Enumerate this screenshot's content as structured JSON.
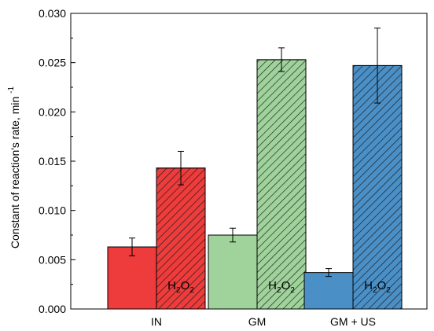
{
  "chart_data": {
    "type": "bar",
    "categories": [
      "IN",
      "GM",
      "GM + US"
    ],
    "ylabel": "Constant of reaction's rate, min",
    "ylabel_superscript": "-1",
    "ylim": [
      0,
      0.03
    ],
    "yticks": [
      "0.000",
      "0.005",
      "0.010",
      "0.015",
      "0.020",
      "0.025",
      "0.030"
    ],
    "series": [
      {
        "values": [
          0.0063,
          0.0075,
          0.0037
        ],
        "errors": [
          0.0009,
          0.0007,
          0.0004
        ],
        "hatched": false
      },
      {
        "values": [
          0.0143,
          0.0253,
          0.0247
        ],
        "errors": [
          0.0017,
          0.0012,
          0.0038
        ],
        "hatched": true,
        "bar_label": "H",
        "bar_label_sub": "2",
        "bar_label_mid": "O",
        "bar_label_sub2": "2"
      }
    ],
    "colors": [
      "#ee3b3b",
      "#9fd39b",
      "#4a8fc6"
    ],
    "grid": false
  }
}
